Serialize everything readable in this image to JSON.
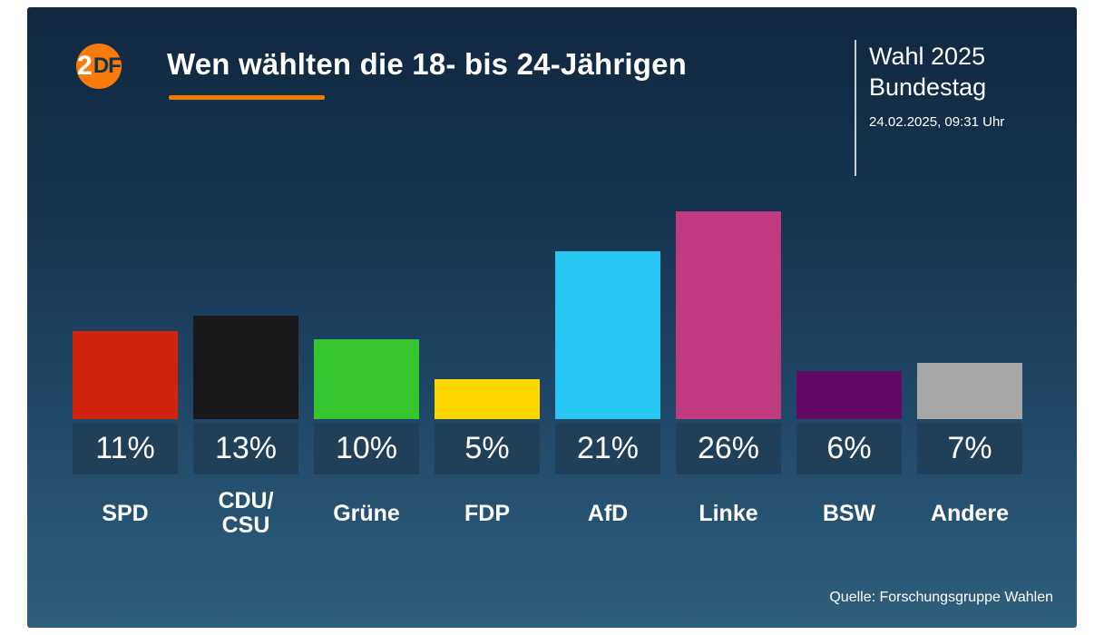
{
  "header": {
    "logo": {
      "circle_char": "2",
      "rest": "DF"
    },
    "title": "Wen wählten die 18- bis 24-Jährigen",
    "badge_line1": "Wahl 2025",
    "badge_line2": "Bundestag",
    "timestamp": "24.02.2025, 09:31 Uhr"
  },
  "footer": {
    "source": "Quelle: Forschungsgruppe Wahlen"
  },
  "chart_data": {
    "type": "bar",
    "title": "Wen wählten die 18- bis 24-Jährigen",
    "subtitle": "Wahl 2025 Bundestag",
    "categories": [
      "SPD",
      "CDU/CSU",
      "Grüne",
      "FDP",
      "AfD",
      "Linke",
      "BSW",
      "Andere"
    ],
    "display_labels": [
      "SPD",
      "CDU/\nCSU",
      "Grüne",
      "FDP",
      "AfD",
      "Linke",
      "BSW",
      "Andere"
    ],
    "values": [
      11,
      13,
      10,
      5,
      21,
      26,
      6,
      7
    ],
    "value_labels": [
      "11%",
      "13%",
      "10%",
      "5%",
      "21%",
      "26%",
      "6%",
      "7%"
    ],
    "unit": "%",
    "colors": [
      "#d0240e",
      "#19191b",
      "#36c52e",
      "#ffd500",
      "#27c7f2",
      "#bf3a7e",
      "#640a66",
      "#a7a7a7"
    ],
    "ylim": [
      0,
      28
    ],
    "grid": false,
    "legend": false,
    "accent_color": "#ef7c00",
    "background_top": "#112740",
    "background_bottom": "#2e5f7d",
    "value_box_color": "#203f58",
    "source": "Quelle: Forschungsgruppe Wahlen"
  }
}
